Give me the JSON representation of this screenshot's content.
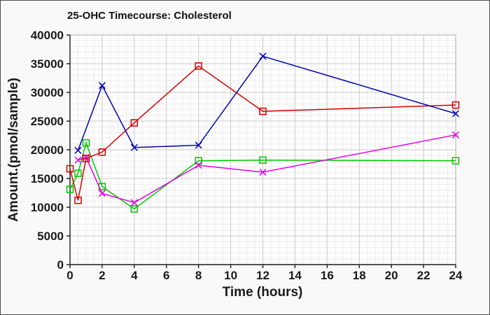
{
  "window": {
    "background_color": "#f9f9f9",
    "border_color": "#4d4d4d"
  },
  "chart_data": {
    "type": "line",
    "title": "25-OHC Timecourse: Cholesterol",
    "xlabel": "Time (hours)",
    "ylabel": "Amount.(pmol/sample)",
    "xlim": [
      0,
      24
    ],
    "ylim": [
      0,
      40000
    ],
    "x_ticks": [
      0,
      2,
      4,
      6,
      8,
      10,
      12,
      14,
      16,
      18,
      20,
      22,
      24
    ],
    "y_ticks": [
      0,
      5000,
      10000,
      15000,
      20000,
      25000,
      30000,
      35000,
      40000
    ],
    "x_minor_step": 0.5,
    "y_minor_step": 1000,
    "grid": "major-and-minor",
    "legend_position": "none",
    "series": [
      {
        "name": "green-squares",
        "color": "#00c800",
        "marker": "open-square",
        "x": [
          0,
          0.5,
          1,
          2,
          4,
          8,
          12,
          24
        ],
        "y": [
          13100,
          15900,
          21200,
          13600,
          9700,
          18100,
          18200,
          18100
        ]
      },
      {
        "name": "magenta-x",
        "color": "#e600e6",
        "marker": "x",
        "x": [
          0.5,
          1,
          2,
          4,
          8,
          12,
          24
        ],
        "y": [
          18200,
          18700,
          12400,
          10800,
          17300,
          16100,
          22600
        ]
      },
      {
        "name": "red-squares",
        "color": "#d40000",
        "marker": "open-square",
        "x": [
          0,
          0.5,
          1,
          2,
          4,
          8,
          12,
          24
        ],
        "y": [
          16700,
          11200,
          18500,
          19600,
          24700,
          34600,
          26700,
          27800
        ]
      },
      {
        "name": "blue-x",
        "color": "#0000b4",
        "marker": "x",
        "x": [
          0.5,
          2,
          4,
          8,
          12,
          24
        ],
        "y": [
          19900,
          31200,
          20400,
          20800,
          36300,
          26300
        ]
      }
    ],
    "colors": {
      "axis": "#1a1a1a",
      "grid_major": "#cccccc",
      "grid_minor": "#ececec",
      "frame": "#bbbbbb",
      "plot_bg": "#fdfdfd"
    }
  }
}
